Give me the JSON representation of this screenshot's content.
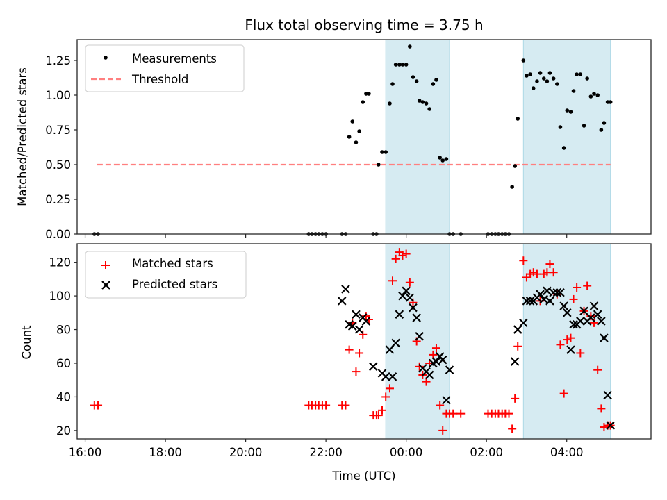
{
  "chart_data": [
    {
      "type": "scatter",
      "title": "Flux total observing time = 3.75 h",
      "xlabel": "",
      "ylabel": "Matched/Predicted stars",
      "x_unit": "hours relative to 00:00 UTC",
      "xlim": [
        -8.2,
        6.1
      ],
      "ylim": [
        0.0,
        1.4
      ],
      "yticks": [
        "0.00",
        "0.25",
        "0.50",
        "0.75",
        "1.00",
        "1.25"
      ],
      "ytick_values": [
        0,
        0.25,
        0.5,
        0.75,
        1.0,
        1.25
      ],
      "xtick_values": [
        -8,
        -6,
        -4,
        -2,
        0,
        2,
        4
      ],
      "legend": {
        "placement": "top-left",
        "entries": [
          "Measurements",
          "Threshold"
        ]
      },
      "shaded_spans": [
        [
          -0.51,
          1.08
        ],
        [
          2.92,
          5.09
        ]
      ],
      "threshold": {
        "name": "Threshold",
        "value": 0.5,
        "x_range": [
          -7.7,
          5.09
        ],
        "color": "#ff7f7f"
      },
      "series": [
        {
          "name": "Measurements",
          "color": "#000000",
          "x": [
            -7.77,
            -7.68,
            -2.43,
            -2.35,
            -2.26,
            -2.18,
            -2.09,
            -2.0,
            -1.6,
            -1.51,
            -1.42,
            -1.34,
            -1.25,
            -1.17,
            -1.08,
            -1.0,
            -0.93,
            -0.82,
            -0.74,
            -0.69,
            -0.6,
            -0.51,
            -0.41,
            -0.34,
            -0.26,
            -0.17,
            -0.09,
            0.0,
            0.09,
            0.17,
            0.26,
            0.33,
            0.41,
            0.5,
            0.58,
            0.67,
            0.75,
            0.84,
            0.91,
            1.0,
            1.08,
            1.17,
            1.36,
            2.04,
            2.13,
            2.22,
            2.3,
            2.39,
            2.47,
            2.56,
            2.64,
            2.71,
            2.78,
            2.92,
            3.0,
            3.09,
            3.17,
            3.26,
            3.34,
            3.43,
            3.51,
            3.58,
            3.67,
            3.76,
            3.84,
            3.93,
            4.01,
            4.1,
            4.17,
            4.25,
            4.34,
            4.43,
            4.51,
            4.6,
            4.68,
            4.77,
            4.86,
            4.93,
            5.02,
            5.09
          ],
          "y": [
            0,
            0,
            0,
            0,
            0,
            0,
            0,
            0,
            0,
            0,
            0.7,
            0.81,
            0.66,
            0.74,
            0.95,
            1.01,
            1.01,
            0,
            0,
            0.5,
            0.59,
            0.59,
            0.94,
            1.08,
            1.22,
            1.22,
            1.22,
            1.22,
            1.35,
            1.13,
            1.1,
            0.96,
            0.95,
            0.94,
            0.9,
            1.08,
            1.11,
            0.55,
            0.53,
            0.54,
            0,
            0,
            0,
            0,
            0,
            0,
            0,
            0,
            0,
            0,
            0.34,
            0.49,
            0.83,
            1.25,
            1.14,
            1.15,
            1.05,
            1.1,
            1.16,
            1.12,
            1.1,
            1.16,
            1.12,
            1.08,
            0.77,
            0.62,
            0.89,
            0.88,
            1.03,
            1.15,
            1.15,
            0.78,
            1.12,
            0.99,
            1.01,
            1.0,
            0.75,
            0.8,
            0.95,
            0.95
          ]
        }
      ]
    },
    {
      "type": "scatter",
      "title": "",
      "xlabel": "Time (UTC)",
      "ylabel": "Count",
      "x_unit": "hours relative to 00:00 UTC",
      "xlim": [
        -8.2,
        6.1
      ],
      "ylim": [
        15,
        131
      ],
      "yticks": [
        "20",
        "40",
        "60",
        "80",
        "100",
        "120"
      ],
      "ytick_values": [
        20,
        40,
        60,
        80,
        100,
        120
      ],
      "xticks": [
        "16:00",
        "18:00",
        "20:00",
        "22:00",
        "00:00",
        "02:00",
        "04:00"
      ],
      "xtick_values": [
        -8,
        -6,
        -4,
        -2,
        0,
        2,
        4
      ],
      "legend": {
        "placement": "top-left",
        "entries": [
          "Matched stars",
          "Predicted stars"
        ]
      },
      "shaded_spans": [
        [
          -0.51,
          1.08
        ],
        [
          2.92,
          5.09
        ]
      ],
      "series": [
        {
          "name": "Matched stars",
          "marker": "+",
          "color": "#ff0000",
          "x": [
            -7.77,
            -7.68,
            -2.43,
            -2.35,
            -2.26,
            -2.18,
            -2.09,
            -2.0,
            -1.6,
            -1.51,
            -1.42,
            -1.34,
            -1.25,
            -1.17,
            -1.08,
            -1.0,
            -0.93,
            -0.82,
            -0.74,
            -0.69,
            -0.6,
            -0.51,
            -0.41,
            -0.34,
            -0.26,
            -0.17,
            -0.09,
            0.0,
            0.09,
            0.17,
            0.26,
            0.33,
            0.41,
            0.5,
            0.58,
            0.67,
            0.75,
            0.84,
            0.91,
            1.0,
            1.08,
            1.17,
            1.36,
            2.04,
            2.13,
            2.22,
            2.3,
            2.39,
            2.47,
            2.56,
            2.64,
            2.71,
            2.78,
            2.92,
            3.0,
            3.09,
            3.17,
            3.26,
            3.34,
            3.43,
            3.51,
            3.58,
            3.67,
            3.76,
            3.84,
            3.93,
            4.01,
            4.1,
            4.17,
            4.25,
            4.34,
            4.43,
            4.51,
            4.6,
            4.68,
            4.77,
            4.86,
            4.93,
            5.02,
            5.09
          ],
          "y": [
            35,
            35,
            35,
            35,
            35,
            35,
            35,
            35,
            35,
            35,
            68,
            84,
            55,
            66,
            77,
            88,
            86,
            29,
            29,
            29,
            32,
            40,
            45,
            109,
            122,
            126,
            124,
            125,
            108,
            96,
            73,
            58,
            53,
            49,
            60,
            65,
            69,
            35,
            20,
            30,
            30,
            30,
            30,
            30,
            30,
            30,
            30,
            30,
            30,
            30,
            21,
            39,
            70,
            121,
            111,
            113,
            114,
            113,
            97,
            113,
            114,
            119,
            114,
            101,
            71,
            42,
            74,
            75,
            98,
            105,
            66,
            91,
            106,
            88,
            84,
            56,
            33,
            22,
            23,
            23
          ]
        },
        {
          "name": "Predicted stars",
          "marker": "x",
          "color": "#000000",
          "x": [
            -1.6,
            -1.51,
            -1.42,
            -1.34,
            -1.25,
            -1.17,
            -1.08,
            -1.0,
            -0.82,
            -0.6,
            -0.51,
            -0.41,
            -0.34,
            -0.26,
            -0.17,
            -0.09,
            0.0,
            0.09,
            0.17,
            0.26,
            0.33,
            0.41,
            0.5,
            0.58,
            0.67,
            0.75,
            0.84,
            0.91,
            1.0,
            1.08,
            2.71,
            2.78,
            2.92,
            3.0,
            3.09,
            3.17,
            3.26,
            3.34,
            3.43,
            3.51,
            3.58,
            3.67,
            3.76,
            3.84,
            3.93,
            4.01,
            4.1,
            4.17,
            4.25,
            4.34,
            4.43,
            4.51,
            4.6,
            4.68,
            4.77,
            4.86,
            4.93,
            5.02,
            5.09
          ],
          "y": [
            97,
            104,
            83,
            82,
            89,
            80,
            87,
            85,
            58,
            54,
            52,
            68,
            52,
            72,
            89,
            100,
            103,
            99,
            93,
            87,
            76,
            57,
            55,
            53,
            60,
            61,
            64,
            62,
            38,
            56,
            61,
            80,
            84,
            97,
            97,
            97,
            99,
            101,
            98,
            103,
            97,
            102,
            102,
            102,
            94,
            90,
            68,
            83,
            83,
            85,
            91,
            85,
            87,
            94,
            89,
            85,
            75,
            41,
            23
          ]
        }
      ]
    }
  ],
  "style": {
    "span_color": "#add8e6",
    "span_opacity": 0.5,
    "threshold_color": "#ff7f7f",
    "matched_color": "#ff0000",
    "predicted_color": "#000000",
    "measurement_color": "#000000"
  }
}
